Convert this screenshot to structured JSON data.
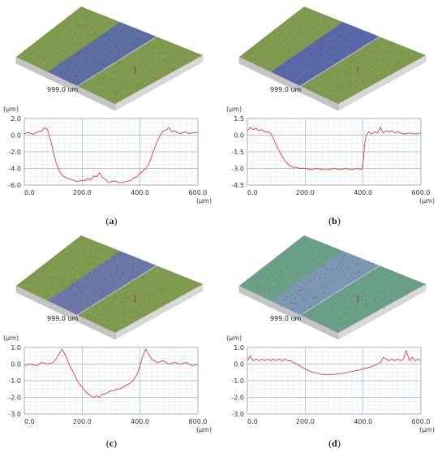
{
  "panels": [
    {
      "id": "a",
      "caption": "(a)",
      "surface_label": "999.0 um",
      "colors": {
        "substrate": "#7f9a4e",
        "trench": "#5a6aa8"
      },
      "chart_data": {
        "type": "line",
        "ylabel": "(μm)",
        "xlabel": "(μm)",
        "xlim": [
          0,
          600
        ],
        "ylim": [
          -6,
          2
        ],
        "yticks": [
          "2.0",
          "0.0",
          "-2.0",
          "-4.0",
          "-6.0"
        ],
        "ytick_values": [
          2,
          0,
          -2,
          -4,
          -6
        ],
        "xticks": [
          "0.0",
          "200.0",
          "400.0",
          "600.0"
        ],
        "xtick_values": [
          0,
          200,
          400,
          600
        ],
        "x": [
          0,
          15,
          30,
          45,
          60,
          70,
          80,
          90,
          100,
          110,
          120,
          130,
          140,
          150,
          160,
          170,
          180,
          190,
          200,
          210,
          220,
          230,
          240,
          250,
          260,
          270,
          280,
          290,
          300,
          310,
          320,
          330,
          340,
          350,
          360,
          370,
          380,
          390,
          400,
          410,
          420,
          430,
          440,
          450,
          460,
          470,
          480,
          490,
          500,
          510,
          520,
          530,
          540,
          555,
          570,
          585,
          600
        ],
        "y": [
          0.2,
          0.3,
          0.1,
          0.4,
          0.5,
          0.9,
          0.7,
          -0.5,
          -2.0,
          -3.3,
          -4.2,
          -4.8,
          -5.0,
          -5.2,
          -5.3,
          -5.4,
          -5.6,
          -5.5,
          -5.4,
          -5.5,
          -5.2,
          -5.4,
          -4.9,
          -5.0,
          -4.5,
          -5.1,
          -5.3,
          -5.7,
          -5.6,
          -5.5,
          -5.6,
          -5.7,
          -5.7,
          -5.6,
          -5.5,
          -5.4,
          -5.1,
          -5.0,
          -4.6,
          -4.3,
          -4.0,
          -3.5,
          -2.6,
          -1.6,
          -0.7,
          0.0,
          0.5,
          0.6,
          0.9,
          0.4,
          0.5,
          0.3,
          0.2,
          0.4,
          0.2,
          0.3,
          0.3
        ]
      }
    },
    {
      "id": "b",
      "caption": "(b)",
      "surface_label": "999.0 um",
      "colors": {
        "substrate": "#7f9a4e",
        "trench": "#5662b0"
      },
      "chart_data": {
        "type": "line",
        "ylabel": "(μm)",
        "xlabel": "(μm)",
        "xlim": [
          0,
          600
        ],
        "ylim": [
          -4.5,
          1.5
        ],
        "yticks": [
          "1.5",
          "0.0",
          "-1.5",
          "-3.0",
          "-4.5"
        ],
        "ytick_values": [
          1.5,
          0,
          -1.5,
          -3,
          -4.5
        ],
        "xticks": [
          "0.0",
          "200.0",
          "400.0",
          "600.0"
        ],
        "xtick_values": [
          0,
          200,
          400,
          600
        ],
        "x": [
          0,
          10,
          20,
          30,
          40,
          50,
          60,
          70,
          80,
          90,
          100,
          110,
          120,
          130,
          140,
          150,
          160,
          170,
          180,
          200,
          220,
          240,
          260,
          280,
          300,
          320,
          340,
          360,
          380,
          395,
          400,
          405,
          410,
          420,
          430,
          440,
          450,
          460,
          470,
          480,
          490,
          500,
          510,
          520,
          540,
          560,
          580,
          600
        ],
        "y": [
          0.4,
          0.7,
          0.5,
          0.6,
          0.4,
          0.5,
          0.3,
          0.3,
          0.2,
          -0.3,
          -0.9,
          -1.4,
          -1.9,
          -2.3,
          -2.6,
          -2.8,
          -2.9,
          -2.9,
          -3.0,
          -3.0,
          -3.1,
          -3.0,
          -3.1,
          -3.1,
          -3.0,
          -3.1,
          -3.0,
          -3.1,
          -3.0,
          -3.1,
          -2.5,
          -1.0,
          -0.1,
          0.3,
          0.1,
          0.3,
          0.2,
          0.7,
          0.2,
          0.4,
          0.3,
          0.4,
          0.2,
          0.3,
          0.1,
          0.2,
          0.1,
          0.2
        ]
      }
    },
    {
      "id": "c",
      "caption": "(c)",
      "surface_label": "999.0 um",
      "colors": {
        "substrate": "#7f9a4e",
        "trench": "#6a74b0"
      },
      "chart_data": {
        "type": "line",
        "ylabel": "(μm)",
        "xlabel": "(μm)",
        "xlim": [
          0,
          600
        ],
        "ylim": [
          -3,
          1
        ],
        "yticks": [
          "1.0",
          "0.0",
          "-1.0",
          "-2.0",
          "-3.0"
        ],
        "ytick_values": [
          1,
          0,
          -1,
          -2,
          -3
        ],
        "xticks": [
          "0.0",
          "200.0",
          "400.0",
          "600.0"
        ],
        "xtick_values": [
          0,
          200,
          400,
          600
        ],
        "x": [
          0,
          20,
          40,
          60,
          80,
          100,
          110,
          120,
          130,
          140,
          150,
          160,
          170,
          180,
          190,
          200,
          210,
          220,
          230,
          240,
          250,
          260,
          270,
          280,
          290,
          300,
          310,
          320,
          330,
          340,
          350,
          360,
          370,
          380,
          390,
          400,
          410,
          420,
          430,
          440,
          460,
          480,
          500,
          520,
          540,
          560,
          580,
          600
        ],
        "y": [
          -0.1,
          0.0,
          -0.1,
          0.1,
          0.0,
          0.1,
          0.3,
          0.6,
          0.9,
          0.6,
          0.2,
          -0.2,
          -0.5,
          -0.9,
          -1.2,
          -1.4,
          -1.6,
          -1.8,
          -1.9,
          -2.0,
          -1.9,
          -2.0,
          -1.8,
          -1.8,
          -1.7,
          -1.6,
          -1.6,
          -1.5,
          -1.5,
          -1.4,
          -1.3,
          -1.2,
          -1.1,
          -0.9,
          -0.6,
          -0.1,
          0.5,
          0.9,
          0.6,
          0.3,
          0.1,
          0.2,
          0.0,
          0.1,
          0.0,
          0.1,
          -0.1,
          0.0
        ]
      }
    },
    {
      "id": "d",
      "caption": "(d)",
      "surface_label": "999.0 um",
      "colors": {
        "substrate": "#6a9e86",
        "trench": "#7e97b6"
      },
      "chart_data": {
        "type": "line",
        "ylabel": "(μm)",
        "xlabel": "(μm)",
        "xlim": [
          0,
          600
        ],
        "ylim": [
          -3,
          1
        ],
        "yticks": [
          "1.0",
          "0.0",
          "-1.0",
          "-2.0",
          "-3.0"
        ],
        "ytick_values": [
          1,
          0,
          -1,
          -2,
          -3
        ],
        "xticks": [
          "0.0",
          "200.0",
          "400.0",
          "600.0"
        ],
        "xtick_values": [
          0,
          200,
          400,
          600
        ],
        "x": [
          0,
          10,
          20,
          30,
          40,
          50,
          60,
          70,
          80,
          90,
          100,
          110,
          120,
          130,
          140,
          150,
          160,
          170,
          180,
          200,
          220,
          240,
          260,
          280,
          300,
          320,
          340,
          360,
          380,
          400,
          420,
          440,
          460,
          470,
          480,
          490,
          500,
          510,
          520,
          530,
          540,
          550,
          560,
          570,
          580,
          590,
          600
        ],
        "y": [
          0.2,
          0.5,
          0.2,
          0.3,
          0.2,
          0.3,
          0.2,
          0.3,
          0.2,
          0.3,
          0.2,
          0.3,
          0.2,
          0.3,
          0.2,
          0.2,
          0.1,
          0.0,
          -0.1,
          -0.3,
          -0.45,
          -0.55,
          -0.62,
          -0.65,
          -0.62,
          -0.58,
          -0.52,
          -0.45,
          -0.38,
          -0.3,
          -0.2,
          -0.1,
          0.1,
          0.4,
          0.3,
          0.2,
          0.3,
          0.2,
          0.3,
          0.2,
          0.3,
          0.8,
          0.2,
          0.4,
          0.2,
          0.3,
          0.2
        ]
      }
    }
  ]
}
